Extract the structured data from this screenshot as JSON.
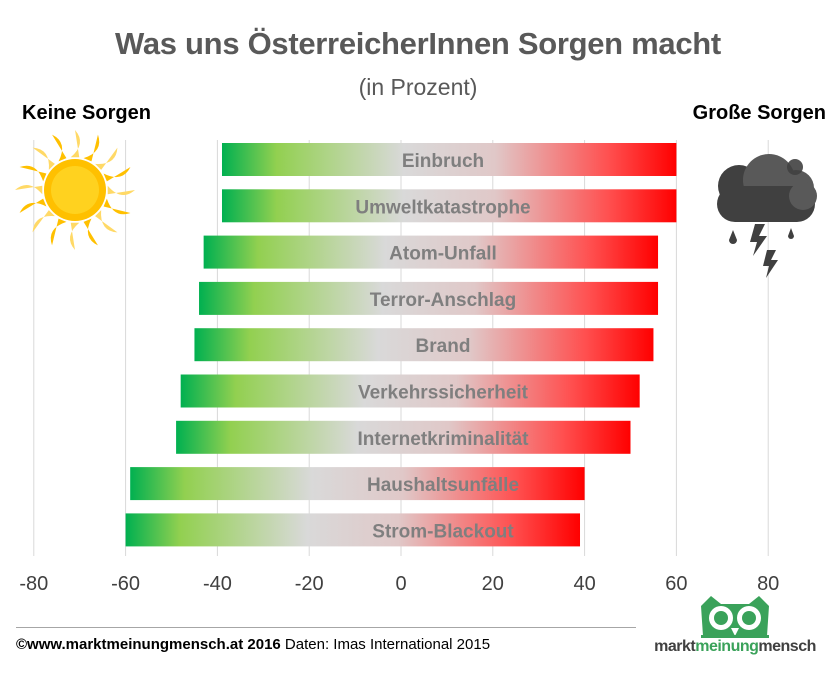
{
  "header": {
    "title": "Was uns ÖsterreicherInnen Sorgen macht",
    "subtitle": "(in Prozent)"
  },
  "labels": {
    "left": "Keine Sorgen",
    "right": "Große Sorgen"
  },
  "icons": {
    "left": "sun-icon",
    "right": "storm-cloud-icon",
    "brand": "owl-icon"
  },
  "footer": {
    "copyright": "©www.marktmeinungmensch.at 2016",
    "source": "Daten: Imas International 2015"
  },
  "brand": {
    "part1": "markt",
    "part2": "meinung",
    "part3": "mensch"
  },
  "colors": {
    "negative": "#00b050",
    "middle": "#d9d9d9",
    "positive": "#ff0000",
    "text": "#7f7f7f",
    "brand_green": "#3aa25a"
  },
  "chart_data": {
    "type": "bar",
    "orientation": "horizontal",
    "title": "Was uns ÖsterreicherInnen Sorgen macht",
    "subtitle": "(in Prozent)",
    "xlim": [
      -80,
      80
    ],
    "xticks": [
      -80,
      -60,
      -40,
      -20,
      0,
      20,
      40,
      60,
      80
    ],
    "grid": "vertical",
    "categories": [
      "Einbruch",
      "Umweltkatastrophe",
      "Atom-Unfall",
      "Terror-Anschlag",
      "Brand",
      "Verkehrssicherheit",
      "Internetkriminalität",
      "Haushaltsunfälle",
      "Strom-Blackout"
    ],
    "series": [
      {
        "values_negative": [
          -39,
          -39,
          -43,
          -44,
          -45,
          -48,
          -49,
          -59,
          -60
        ]
      },
      {
        "values_positive": [
          60,
          60,
          56,
          56,
          55,
          52,
          50,
          40,
          39
        ]
      }
    ]
  }
}
